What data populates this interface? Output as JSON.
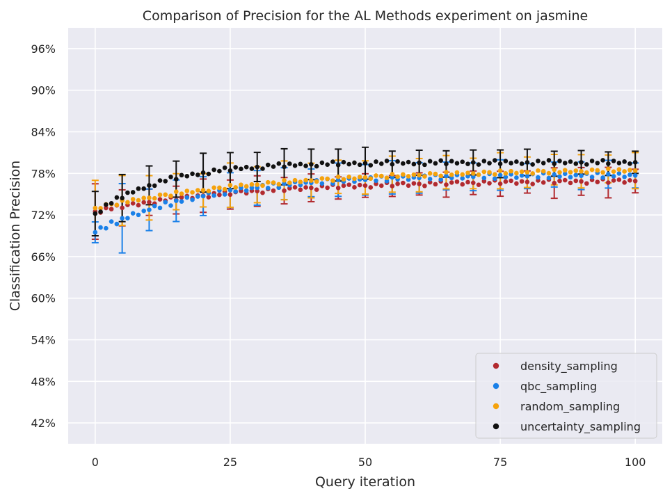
{
  "chart_data": {
    "type": "scatter",
    "title": "Comparison of Precision for the AL Methods experiment on jasmine",
    "xlabel": "Query iteration",
    "ylabel": "Classification Precision",
    "xlim": [
      -5,
      105
    ],
    "ylim": [
      0.39,
      0.99
    ],
    "x_ticks": [
      0,
      25,
      50,
      75,
      100
    ],
    "y_ticks": [
      0.42,
      0.48,
      0.54,
      0.6,
      0.66,
      0.72,
      0.78,
      0.84,
      0.9,
      0.96
    ],
    "y_tick_labels": [
      "42%",
      "48%",
      "54%",
      "60%",
      "66%",
      "72%",
      "78%",
      "84%",
      "90%",
      "96%"
    ],
    "grid": true,
    "legend_position": "bottom-right",
    "background": "#eaeaf2",
    "series": [
      {
        "name": "density_sampling",
        "color": "#b22a2f",
        "start": 0.725,
        "end": 0.769,
        "shape_k": 0.035,
        "noise": [
          0.0,
          -0.003,
          0.002,
          -0.001,
          0.003,
          -0.002,
          0.001,
          0.002,
          -0.002,
          0.001
        ],
        "error_x": [
          0,
          5,
          10,
          15,
          20,
          25,
          30,
          35,
          40,
          45,
          50,
          55,
          60,
          65,
          70,
          75,
          80,
          85,
          90,
          95,
          100
        ],
        "error_bars": [
          0.04,
          0.026,
          0.019,
          0.02,
          0.024,
          0.021,
          0.022,
          0.019,
          0.02,
          0.016,
          0.017,
          0.015,
          0.016,
          0.018,
          0.017,
          0.018,
          0.016,
          0.022,
          0.02,
          0.022,
          0.017
        ]
      },
      {
        "name": "qbc_sampling",
        "color": "#1a80e8",
        "start": 0.695,
        "end": 0.777,
        "shape_k": 0.05,
        "noise": [
          0.0,
          0.003,
          -0.002,
          0.004,
          -0.003,
          0.002,
          -0.001,
          0.003,
          -0.002,
          0.001
        ],
        "error_x": [
          0,
          5,
          10,
          15,
          20,
          25,
          30,
          35,
          40,
          45,
          50,
          55,
          60,
          65,
          70,
          75,
          80,
          85,
          90,
          95,
          100
        ],
        "error_bars": [
          0.015,
          0.05,
          0.03,
          0.03,
          0.028,
          0.025,
          0.025,
          0.023,
          0.02,
          0.024,
          0.022,
          0.024,
          0.022,
          0.02,
          0.02,
          0.022,
          0.018,
          0.018,
          0.02,
          0.02,
          0.018
        ]
      },
      {
        "name": "random_sampling",
        "color": "#f5a20c",
        "start": 0.73,
        "end": 0.784,
        "shape_k": 0.03,
        "noise": [
          0.0,
          -0.002,
          0.002,
          0.001,
          -0.002,
          0.003,
          -0.001,
          0.002,
          -0.001,
          0.001
        ],
        "error_x": [
          0,
          5,
          10,
          15,
          20,
          25,
          30,
          35,
          40,
          45,
          50,
          55,
          60,
          65,
          70,
          75,
          80,
          85,
          90,
          95,
          100
        ],
        "error_bars": [
          0.04,
          0.036,
          0.032,
          0.026,
          0.024,
          0.032,
          0.026,
          0.028,
          0.025,
          0.024,
          0.024,
          0.026,
          0.024,
          0.024,
          0.022,
          0.026,
          0.022,
          0.022,
          0.024,
          0.02,
          0.026
        ]
      },
      {
        "name": "uncertainty_sampling",
        "color": "#111111",
        "start": 0.722,
        "end": 0.796,
        "shape_k": 0.08,
        "noise": [
          0.0,
          -0.003,
          0.002,
          -0.001,
          0.003,
          -0.002,
          0.002,
          -0.001,
          0.001,
          -0.002
        ],
        "error_x": [
          0,
          5,
          10,
          15,
          20,
          25,
          30,
          35,
          40,
          45,
          50,
          55,
          60,
          65,
          70,
          75,
          80,
          85,
          90,
          95,
          100
        ],
        "error_bars": [
          0.032,
          0.034,
          0.028,
          0.026,
          0.028,
          0.026,
          0.021,
          0.026,
          0.022,
          0.023,
          0.023,
          0.019,
          0.018,
          0.019,
          0.018,
          0.02,
          0.019,
          0.018,
          0.017,
          0.017,
          0.016
        ]
      }
    ]
  }
}
